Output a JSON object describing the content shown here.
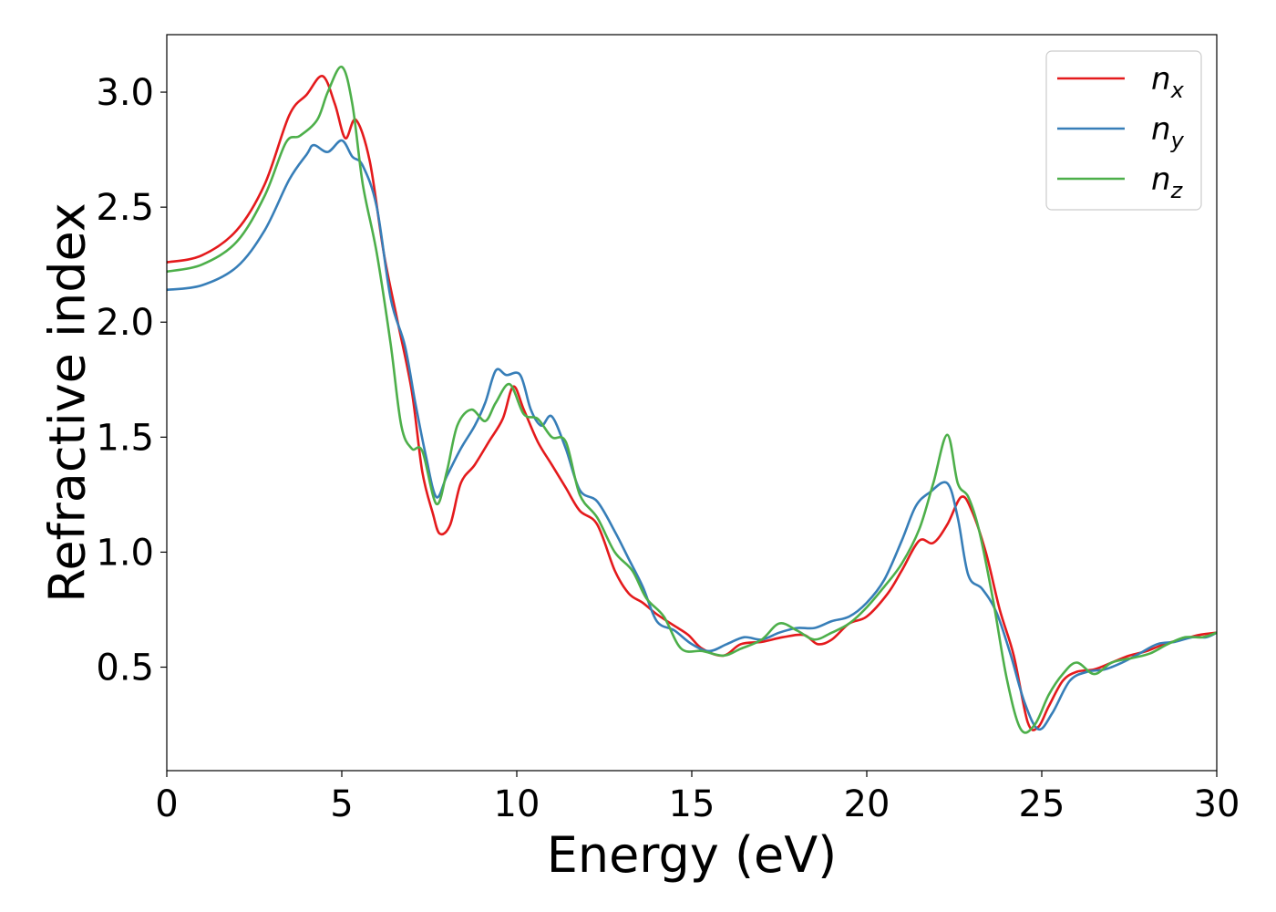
{
  "chart_data": {
    "type": "line",
    "title": "",
    "xlabel": "Energy (eV)",
    "ylabel": "Refractive index",
    "xlim": [
      0,
      30
    ],
    "ylim": [
      0.05,
      3.25
    ],
    "xticks": [
      0,
      5,
      10,
      15,
      20,
      25,
      30
    ],
    "yticks": [
      0.5,
      1.0,
      1.5,
      2.0,
      2.5,
      3.0
    ],
    "xtick_labels": [
      "0",
      "5",
      "10",
      "15",
      "20",
      "25",
      "30"
    ],
    "ytick_labels": [
      "0.5",
      "1.0",
      "1.5",
      "2.0",
      "2.5",
      "3.0"
    ],
    "grid": false,
    "legend_position": "top-right",
    "series": [
      {
        "name": "n",
        "subscript": "x",
        "color": "#e41a1c",
        "points": [
          [
            0,
            2.26
          ],
          [
            1,
            2.29
          ],
          [
            2,
            2.4
          ],
          [
            2.8,
            2.6
          ],
          [
            3.5,
            2.9
          ],
          [
            4.0,
            2.99
          ],
          [
            4.45,
            3.07
          ],
          [
            4.8,
            2.95
          ],
          [
            5.1,
            2.8
          ],
          [
            5.4,
            2.88
          ],
          [
            5.8,
            2.7
          ],
          [
            6.2,
            2.3
          ],
          [
            6.6,
            2.0
          ],
          [
            7.0,
            1.7
          ],
          [
            7.3,
            1.35
          ],
          [
            7.6,
            1.17
          ],
          [
            7.8,
            1.08
          ],
          [
            8.1,
            1.12
          ],
          [
            8.4,
            1.3
          ],
          [
            8.8,
            1.38
          ],
          [
            9.2,
            1.48
          ],
          [
            9.6,
            1.58
          ],
          [
            9.9,
            1.72
          ],
          [
            10.2,
            1.62
          ],
          [
            10.6,
            1.48
          ],
          [
            11.0,
            1.38
          ],
          [
            11.4,
            1.28
          ],
          [
            11.8,
            1.18
          ],
          [
            12.3,
            1.12
          ],
          [
            12.8,
            0.92
          ],
          [
            13.2,
            0.82
          ],
          [
            13.6,
            0.78
          ],
          [
            14.0,
            0.73
          ],
          [
            14.5,
            0.68
          ],
          [
            14.9,
            0.64
          ],
          [
            15.3,
            0.58
          ],
          [
            15.9,
            0.55
          ],
          [
            16.4,
            0.6
          ],
          [
            17.0,
            0.61
          ],
          [
            17.6,
            0.63
          ],
          [
            18.2,
            0.64
          ],
          [
            18.6,
            0.6
          ],
          [
            19.0,
            0.62
          ],
          [
            19.5,
            0.69
          ],
          [
            20.0,
            0.72
          ],
          [
            20.6,
            0.82
          ],
          [
            21.0,
            0.92
          ],
          [
            21.5,
            1.05
          ],
          [
            21.9,
            1.04
          ],
          [
            22.3,
            1.12
          ],
          [
            22.7,
            1.24
          ],
          [
            23.0,
            1.18
          ],
          [
            23.4,
            1.0
          ],
          [
            23.8,
            0.75
          ],
          [
            24.2,
            0.55
          ],
          [
            24.6,
            0.26
          ],
          [
            24.9,
            0.24
          ],
          [
            25.2,
            0.33
          ],
          [
            25.6,
            0.44
          ],
          [
            26.0,
            0.48
          ],
          [
            26.5,
            0.49
          ],
          [
            27.0,
            0.52
          ],
          [
            27.5,
            0.55
          ],
          [
            28.0,
            0.57
          ],
          [
            28.5,
            0.6
          ],
          [
            29.0,
            0.62
          ],
          [
            29.5,
            0.64
          ],
          [
            30.0,
            0.65
          ]
        ]
      },
      {
        "name": "n",
        "subscript": "y",
        "color": "#377eb8",
        "points": [
          [
            0,
            2.14
          ],
          [
            1,
            2.16
          ],
          [
            2,
            2.24
          ],
          [
            2.8,
            2.4
          ],
          [
            3.5,
            2.62
          ],
          [
            4.0,
            2.73
          ],
          [
            4.2,
            2.77
          ],
          [
            4.6,
            2.74
          ],
          [
            5.0,
            2.79
          ],
          [
            5.3,
            2.72
          ],
          [
            5.6,
            2.68
          ],
          [
            6.0,
            2.5
          ],
          [
            6.4,
            2.1
          ],
          [
            6.8,
            1.9
          ],
          [
            7.1,
            1.65
          ],
          [
            7.4,
            1.42
          ],
          [
            7.7,
            1.24
          ],
          [
            8.0,
            1.33
          ],
          [
            8.4,
            1.45
          ],
          [
            8.8,
            1.55
          ],
          [
            9.1,
            1.65
          ],
          [
            9.4,
            1.79
          ],
          [
            9.7,
            1.77
          ],
          [
            10.1,
            1.77
          ],
          [
            10.4,
            1.62
          ],
          [
            10.7,
            1.55
          ],
          [
            11.0,
            1.59
          ],
          [
            11.4,
            1.45
          ],
          [
            11.8,
            1.27
          ],
          [
            12.3,
            1.22
          ],
          [
            12.8,
            1.09
          ],
          [
            13.2,
            0.97
          ],
          [
            13.6,
            0.85
          ],
          [
            14.0,
            0.7
          ],
          [
            14.5,
            0.66
          ],
          [
            15.0,
            0.6
          ],
          [
            15.5,
            0.57
          ],
          [
            16.0,
            0.6
          ],
          [
            16.5,
            0.63
          ],
          [
            17.0,
            0.62
          ],
          [
            17.5,
            0.65
          ],
          [
            18.0,
            0.67
          ],
          [
            18.5,
            0.67
          ],
          [
            19.0,
            0.7
          ],
          [
            19.5,
            0.72
          ],
          [
            20.0,
            0.78
          ],
          [
            20.5,
            0.88
          ],
          [
            21.0,
            1.05
          ],
          [
            21.4,
            1.2
          ],
          [
            21.8,
            1.26
          ],
          [
            22.3,
            1.3
          ],
          [
            22.6,
            1.15
          ],
          [
            22.9,
            0.9
          ],
          [
            23.3,
            0.84
          ],
          [
            23.7,
            0.74
          ],
          [
            24.1,
            0.56
          ],
          [
            24.5,
            0.35
          ],
          [
            24.9,
            0.23
          ],
          [
            25.3,
            0.3
          ],
          [
            25.8,
            0.44
          ],
          [
            26.3,
            0.48
          ],
          [
            26.8,
            0.49
          ],
          [
            27.3,
            0.52
          ],
          [
            27.8,
            0.56
          ],
          [
            28.3,
            0.6
          ],
          [
            28.8,
            0.61
          ],
          [
            29.3,
            0.63
          ],
          [
            29.7,
            0.63
          ],
          [
            30.0,
            0.65
          ]
        ]
      },
      {
        "name": "n",
        "subscript": "z",
        "color": "#4daf4a",
        "points": [
          [
            0,
            2.22
          ],
          [
            1,
            2.25
          ],
          [
            2,
            2.35
          ],
          [
            2.8,
            2.55
          ],
          [
            3.4,
            2.78
          ],
          [
            3.8,
            2.81
          ],
          [
            4.3,
            2.88
          ],
          [
            4.6,
            3.0
          ],
          [
            5.0,
            3.11
          ],
          [
            5.3,
            2.95
          ],
          [
            5.6,
            2.6
          ],
          [
            6.0,
            2.3
          ],
          [
            6.4,
            1.9
          ],
          [
            6.7,
            1.55
          ],
          [
            7.0,
            1.45
          ],
          [
            7.3,
            1.44
          ],
          [
            7.7,
            1.21
          ],
          [
            8.0,
            1.35
          ],
          [
            8.3,
            1.55
          ],
          [
            8.7,
            1.62
          ],
          [
            9.1,
            1.57
          ],
          [
            9.4,
            1.65
          ],
          [
            9.8,
            1.73
          ],
          [
            10.2,
            1.6
          ],
          [
            10.6,
            1.58
          ],
          [
            11.0,
            1.5
          ],
          [
            11.4,
            1.48
          ],
          [
            11.8,
            1.25
          ],
          [
            12.3,
            1.15
          ],
          [
            12.8,
            1.0
          ],
          [
            13.3,
            0.92
          ],
          [
            13.7,
            0.8
          ],
          [
            14.2,
            0.72
          ],
          [
            14.7,
            0.58
          ],
          [
            15.3,
            0.57
          ],
          [
            15.9,
            0.55
          ],
          [
            16.4,
            0.58
          ],
          [
            17.0,
            0.62
          ],
          [
            17.5,
            0.69
          ],
          [
            18.0,
            0.66
          ],
          [
            18.5,
            0.62
          ],
          [
            19.0,
            0.65
          ],
          [
            19.5,
            0.69
          ],
          [
            20.0,
            0.76
          ],
          [
            20.5,
            0.85
          ],
          [
            21.0,
            0.95
          ],
          [
            21.5,
            1.1
          ],
          [
            21.9,
            1.3
          ],
          [
            22.3,
            1.51
          ],
          [
            22.6,
            1.3
          ],
          [
            22.9,
            1.24
          ],
          [
            23.2,
            1.1
          ],
          [
            23.6,
            0.8
          ],
          [
            24.0,
            0.45
          ],
          [
            24.4,
            0.23
          ],
          [
            24.8,
            0.25
          ],
          [
            25.2,
            0.38
          ],
          [
            25.6,
            0.47
          ],
          [
            26.0,
            0.52
          ],
          [
            26.5,
            0.47
          ],
          [
            27.0,
            0.52
          ],
          [
            27.6,
            0.54
          ],
          [
            28.1,
            0.56
          ],
          [
            28.6,
            0.6
          ],
          [
            29.1,
            0.63
          ],
          [
            29.6,
            0.63
          ],
          [
            30.0,
            0.65
          ]
        ]
      }
    ]
  }
}
